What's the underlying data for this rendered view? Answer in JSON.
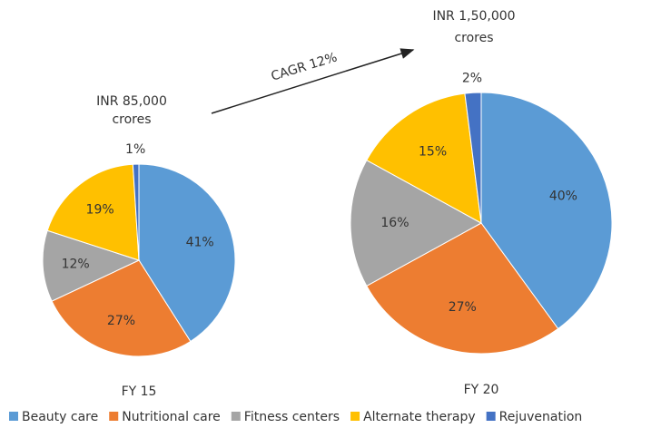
{
  "annotation": "CAGR 12%",
  "legend": {
    "categories": [
      "Beauty care",
      "Nutritional care",
      "Fitness centers",
      "Alternate therapy",
      "Rejuvenation"
    ],
    "colors": [
      "#5b9bd5",
      "#ed7d31",
      "#a5a5a5",
      "#ffc000",
      "#4472c4"
    ]
  },
  "chart_data": [
    {
      "type": "pie",
      "title": "FY 15",
      "subtitle": [
        "INR 85,000",
        "crores"
      ],
      "values": [
        41,
        27,
        12,
        19,
        1
      ],
      "value_labels": [
        "41%",
        "27%",
        "12%",
        "19%",
        "1%"
      ]
    },
    {
      "type": "pie",
      "title": "FY 20",
      "subtitle": [
        "INR 1,50,000",
        "crores"
      ],
      "values": [
        40,
        27,
        16,
        15,
        2
      ],
      "value_labels": [
        "40%",
        "27%",
        "16%",
        "15%",
        "2%"
      ]
    }
  ]
}
